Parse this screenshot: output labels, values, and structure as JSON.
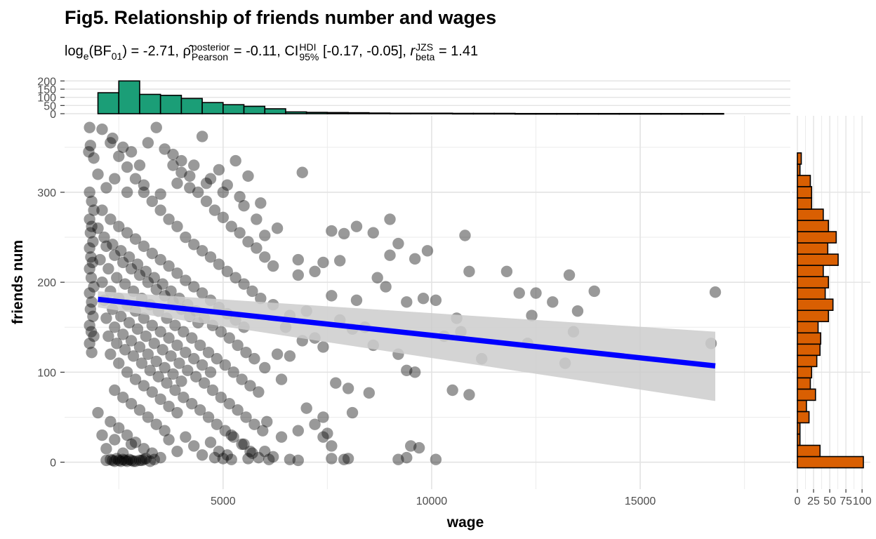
{
  "title": "Fig5. Relationship of friends number and wages",
  "subtitle": {
    "log_label": "log",
    "log_sub": "e",
    "bf": "BF",
    "bf_sub": "01",
    "bf_value": " = -2.71, ",
    "rho": "ρ̂",
    "rho_sup": "posterior",
    "rho_sub": "Pearson",
    "rho_value": " = -0.11, ",
    "ci": "CI",
    "ci_sup": "HDI",
    "ci_sub": "95%",
    "ci_value": " [-0.17, -0.05], ",
    "r": "r",
    "r_sup": "JZS",
    "r_sub": "beta",
    "r_value": " = 1.41"
  },
  "chart_data": {
    "type": "scatter",
    "xlabel": "wage",
    "ylabel": "friends num",
    "xlim": [
      1200,
      18600
    ],
    "ylim": [
      -30,
      385
    ],
    "x_ticks": [
      5000,
      10000,
      15000
    ],
    "y_ticks": [
      0,
      100,
      200,
      300
    ],
    "points": [
      [
        1800,
        372
      ],
      [
        1780,
        345
      ],
      [
        1820,
        352
      ],
      [
        1900,
        338
      ],
      [
        2350,
        360
      ],
      [
        2600,
        350
      ],
      [
        2800,
        345
      ],
      [
        3000,
        330
      ],
      [
        3200,
        355
      ],
      [
        3400,
        372
      ],
      [
        3800,
        330
      ],
      [
        4000,
        335
      ],
      [
        4500,
        362
      ],
      [
        5300,
        335
      ],
      [
        5600,
        318
      ],
      [
        6900,
        322
      ],
      [
        2000,
        320
      ],
      [
        2200,
        305
      ],
      [
        2400,
        315
      ],
      [
        2700,
        300
      ],
      [
        3100,
        308
      ],
      [
        3500,
        298
      ],
      [
        3900,
        310
      ],
      [
        4200,
        305
      ],
      [
        4600,
        310
      ],
      [
        5000,
        300
      ],
      [
        5400,
        295
      ],
      [
        5900,
        288
      ],
      [
        1800,
        300
      ],
      [
        1850,
        290
      ],
      [
        1900,
        280
      ],
      [
        1800,
        270
      ],
      [
        1850,
        262
      ],
      [
        1820,
        255
      ],
      [
        1880,
        245
      ],
      [
        1800,
        238
      ],
      [
        1830,
        228
      ],
      [
        1870,
        222
      ],
      [
        1800,
        215
      ],
      [
        1840,
        205
      ],
      [
        1900,
        195
      ],
      [
        1800,
        188
      ],
      [
        1850,
        178
      ],
      [
        1820,
        170
      ],
      [
        1880,
        162
      ],
      [
        1800,
        152
      ],
      [
        1840,
        145
      ],
      [
        1900,
        140
      ],
      [
        1800,
        132
      ],
      [
        1850,
        122
      ],
      [
        2100,
        280
      ],
      [
        2300,
        270
      ],
      [
        2500,
        262
      ],
      [
        2700,
        255
      ],
      [
        2900,
        248
      ],
      [
        3100,
        240
      ],
      [
        3300,
        232
      ],
      [
        3500,
        225
      ],
      [
        3700,
        218
      ],
      [
        3900,
        210
      ],
      [
        4100,
        202
      ],
      [
        4300,
        195
      ],
      [
        4500,
        188
      ],
      [
        4700,
        180
      ],
      [
        4900,
        172
      ],
      [
        5100,
        165
      ],
      [
        5300,
        158
      ],
      [
        5500,
        150
      ],
      [
        2200,
        240
      ],
      [
        2400,
        230
      ],
      [
        2600,
        222
      ],
      [
        2800,
        215
      ],
      [
        3000,
        208
      ],
      [
        3200,
        200
      ],
      [
        3400,
        192
      ],
      [
        3600,
        185
      ],
      [
        3800,
        178
      ],
      [
        4000,
        170
      ],
      [
        4200,
        162
      ],
      [
        4400,
        155
      ],
      [
        2100,
        200
      ],
      [
        2300,
        190
      ],
      [
        2500,
        182
      ],
      [
        2700,
        175
      ],
      [
        2900,
        168
      ],
      [
        3100,
        160
      ],
      [
        3300,
        152
      ],
      [
        3500,
        145
      ],
      [
        3700,
        138
      ],
      [
        3900,
        130
      ],
      [
        4100,
        122
      ],
      [
        4300,
        115
      ],
      [
        4500,
        108
      ],
      [
        4700,
        100
      ],
      [
        2200,
        160
      ],
      [
        2400,
        150
      ],
      [
        2600,
        142
      ],
      [
        2800,
        135
      ],
      [
        3000,
        128
      ],
      [
        3200,
        120
      ],
      [
        3400,
        112
      ],
      [
        3600,
        105
      ],
      [
        3800,
        98
      ],
      [
        4000,
        90
      ],
      [
        2300,
        120
      ],
      [
        2500,
        110
      ],
      [
        2700,
        100
      ],
      [
        2900,
        92
      ],
      [
        3100,
        85
      ],
      [
        3300,
        78
      ],
      [
        3500,
        70
      ],
      [
        3700,
        62
      ],
      [
        3900,
        55
      ],
      [
        2400,
        80
      ],
      [
        2600,
        72
      ],
      [
        2800,
        65
      ],
      [
        3000,
        58
      ],
      [
        3200,
        50
      ],
      [
        3400,
        42
      ],
      [
        3600,
        35
      ],
      [
        2300,
        45
      ],
      [
        2500,
        38
      ],
      [
        2700,
        30
      ],
      [
        2900,
        22
      ],
      [
        3100,
        15
      ],
      [
        3300,
        10
      ],
      [
        3500,
        5
      ],
      [
        2000,
        55
      ],
      [
        2100,
        30
      ],
      [
        2200,
        15
      ],
      [
        2400,
        25
      ],
      [
        2600,
        10
      ],
      [
        2800,
        20
      ],
      [
        3700,
        25
      ],
      [
        3900,
        12
      ],
      [
        4100,
        28
      ],
      [
        4300,
        18
      ],
      [
        4500,
        8
      ],
      [
        4700,
        22
      ],
      [
        5200,
        30
      ],
      [
        5500,
        20
      ],
      [
        6000,
        12
      ],
      [
        6400,
        28
      ],
      [
        6800,
        35
      ],
      [
        7200,
        42
      ],
      [
        7400,
        28
      ],
      [
        7600,
        18
      ],
      [
        9500,
        18
      ],
      [
        9700,
        16
      ],
      [
        4800,
        5
      ],
      [
        5000,
        4
      ],
      [
        5200,
        3
      ],
      [
        5600,
        4
      ],
      [
        6100,
        3
      ],
      [
        6800,
        2
      ],
      [
        7600,
        4
      ],
      [
        7900,
        3
      ],
      [
        8000,
        4
      ],
      [
        9200,
        3
      ],
      [
        9400,
        5
      ],
      [
        10100,
        3
      ],
      [
        5800,
        270
      ],
      [
        6300,
        260
      ],
      [
        6800,
        225
      ],
      [
        7400,
        222
      ],
      [
        7600,
        257
      ],
      [
        7900,
        254
      ],
      [
        8200,
        262
      ],
      [
        8600,
        255
      ],
      [
        9200,
        243
      ],
      [
        9000,
        270
      ],
      [
        9600,
        226
      ],
      [
        10800,
        252
      ],
      [
        6800,
        208
      ],
      [
        7200,
        212
      ],
      [
        7800,
        224
      ],
      [
        8700,
        205
      ],
      [
        9000,
        230
      ],
      [
        9900,
        235
      ],
      [
        10100,
        180
      ],
      [
        10900,
        212
      ],
      [
        11800,
        212
      ],
      [
        12100,
        188
      ],
      [
        12500,
        188
      ],
      [
        12900,
        178
      ],
      [
        13300,
        208
      ],
      [
        13900,
        190
      ],
      [
        16800,
        189
      ],
      [
        6200,
        175
      ],
      [
        6600,
        163
      ],
      [
        7000,
        168
      ],
      [
        7600,
        185
      ],
      [
        8200,
        180
      ],
      [
        8900,
        195
      ],
      [
        9400,
        178
      ],
      [
        9800,
        182
      ],
      [
        10600,
        160
      ],
      [
        10700,
        145
      ],
      [
        12400,
        163
      ],
      [
        13500,
        168
      ],
      [
        6500,
        150
      ],
      [
        6900,
        135
      ],
      [
        7400,
        128
      ],
      [
        7800,
        158
      ],
      [
        8100,
        148
      ],
      [
        8400,
        150
      ],
      [
        8600,
        130
      ],
      [
        9200,
        120
      ],
      [
        9400,
        102
      ],
      [
        10300,
        140
      ],
      [
        11200,
        115
      ],
      [
        12300,
        132
      ],
      [
        13200,
        110
      ],
      [
        13400,
        145
      ],
      [
        16700,
        132
      ],
      [
        6300,
        120
      ],
      [
        6600,
        118
      ],
      [
        7200,
        138
      ],
      [
        7700,
        88
      ],
      [
        8000,
        82
      ],
      [
        8500,
        77
      ],
      [
        9600,
        100
      ],
      [
        10500,
        80
      ],
      [
        10900,
        75
      ],
      [
        6000,
        105
      ],
      [
        6400,
        92
      ],
      [
        7000,
        60
      ],
      [
        7400,
        50
      ],
      [
        7500,
        32
      ],
      [
        8100,
        55
      ],
      [
        2100,
        370
      ],
      [
        2300,
        355
      ],
      [
        2500,
        340
      ],
      [
        2700,
        328
      ],
      [
        2900,
        315
      ],
      [
        3100,
        300
      ],
      [
        3300,
        290
      ],
      [
        3500,
        280
      ],
      [
        3700,
        270
      ],
      [
        3900,
        262
      ],
      [
        4100,
        250
      ],
      [
        4300,
        242
      ],
      [
        4500,
        235
      ],
      [
        4700,
        228
      ],
      [
        4900,
        220
      ],
      [
        5100,
        212
      ],
      [
        5300,
        205
      ],
      [
        5500,
        198
      ],
      [
        5700,
        190
      ],
      [
        5900,
        182
      ],
      [
        2000,
        260
      ],
      [
        2150,
        250
      ],
      [
        2350,
        242
      ],
      [
        2550,
        235
      ],
      [
        2750,
        228
      ],
      [
        2950,
        220
      ],
      [
        3150,
        212
      ],
      [
        3350,
        205
      ],
      [
        3550,
        198
      ],
      [
        3750,
        190
      ],
      [
        3950,
        182
      ],
      [
        4150,
        175
      ],
      [
        4350,
        168
      ],
      [
        4550,
        160
      ],
      [
        4750,
        152
      ],
      [
        4950,
        145
      ],
      [
        5150,
        138
      ],
      [
        5350,
        130
      ],
      [
        5550,
        122
      ],
      [
        5750,
        115
      ],
      [
        2050,
        225
      ],
      [
        2250,
        215
      ],
      [
        2450,
        205
      ],
      [
        2650,
        198
      ],
      [
        2850,
        190
      ],
      [
        3050,
        182
      ],
      [
        3250,
        175
      ],
      [
        3450,
        168
      ],
      [
        3650,
        160
      ],
      [
        3850,
        152
      ],
      [
        4050,
        145
      ],
      [
        4250,
        138
      ],
      [
        4450,
        130
      ],
      [
        4650,
        122
      ],
      [
        4850,
        115
      ],
      [
        5050,
        108
      ],
      [
        5250,
        100
      ],
      [
        5450,
        92
      ],
      [
        5650,
        85
      ],
      [
        5850,
        78
      ],
      [
        2150,
        180
      ],
      [
        2350,
        170
      ],
      [
        2550,
        162
      ],
      [
        2750,
        155
      ],
      [
        2950,
        148
      ],
      [
        3150,
        140
      ],
      [
        3350,
        132
      ],
      [
        3550,
        125
      ],
      [
        3750,
        118
      ],
      [
        3950,
        110
      ],
      [
        4150,
        102
      ],
      [
        4350,
        95
      ],
      [
        4550,
        88
      ],
      [
        4750,
        80
      ],
      [
        4950,
        72
      ],
      [
        5150,
        65
      ],
      [
        5350,
        58
      ],
      [
        5550,
        50
      ],
      [
        5750,
        42
      ],
      [
        5950,
        35
      ],
      [
        2250,
        140
      ],
      [
        2450,
        132
      ],
      [
        2650,
        125
      ],
      [
        2850,
        118
      ],
      [
        3050,
        110
      ],
      [
        3250,
        102
      ],
      [
        3450,
        95
      ],
      [
        3650,
        88
      ],
      [
        3850,
        80
      ],
      [
        4050,
        72
      ],
      [
        4250,
        65
      ],
      [
        4450,
        58
      ],
      [
        4650,
        50
      ],
      [
        4850,
        42
      ],
      [
        5050,
        35
      ],
      [
        5250,
        28
      ],
      [
        5450,
        20
      ],
      [
        5650,
        12
      ],
      [
        5850,
        5
      ],
      [
        6050,
        45
      ],
      [
        3600,
        348
      ],
      [
        3800,
        342
      ],
      [
        4000,
        322
      ],
      [
        4200,
        318
      ],
      [
        4400,
        300
      ],
      [
        4600,
        290
      ],
      [
        4800,
        280
      ],
      [
        5000,
        272
      ],
      [
        5200,
        262
      ],
      [
        5400,
        255
      ],
      [
        5600,
        245
      ],
      [
        5800,
        238
      ],
      [
        6000,
        228
      ],
      [
        6200,
        218
      ],
      [
        4300,
        330
      ],
      [
        4700,
        315
      ],
      [
        4900,
        325
      ],
      [
        5100,
        308
      ],
      [
        5500,
        285
      ],
      [
        6000,
        252
      ],
      [
        3000,
        2
      ],
      [
        2900,
        1
      ],
      [
        3100,
        3
      ],
      [
        2200,
        2
      ],
      [
        2300,
        3
      ],
      [
        2400,
        1
      ],
      [
        2500,
        2
      ],
      [
        2600,
        3
      ],
      [
        2700,
        1
      ],
      [
        2800,
        2
      ],
      [
        2450,
        4
      ],
      [
        2550,
        1
      ],
      [
        2650,
        2
      ],
      [
        2750,
        3
      ],
      [
        2850,
        1
      ],
      [
        3050,
        2
      ],
      [
        2350,
        2
      ],
      [
        3150,
        4
      ],
      [
        3250,
        1
      ],
      [
        3350,
        3
      ],
      [
        4900,
        12
      ],
      [
        5100,
        8
      ],
      [
        5700,
        10
      ],
      [
        6200,
        6
      ],
      [
        6600,
        3
      ]
    ],
    "regression": {
      "x_start": 2000,
      "y_start": 181,
      "x_end": 16800,
      "y_end": 107
    },
    "ci_band": {
      "lower_start": 172,
      "upper_start": 190,
      "lower_end": 68,
      "upper_end": 145
    },
    "top_histogram": {
      "y_ticks": [
        0,
        50,
        100,
        150,
        200
      ],
      "counts": [
        128,
        200,
        118,
        112,
        93,
        68,
        55,
        45,
        30,
        11,
        8,
        7,
        6,
        4,
        3,
        3,
        3,
        2,
        2,
        2,
        1,
        1,
        1,
        1,
        1,
        1,
        1,
        1,
        1,
        1
      ],
      "x_start": 2000,
      "bin_width": 500,
      "fill": "#1b9e77"
    },
    "right_histogram": {
      "x_ticks": [
        0,
        25,
        50,
        75,
        100
      ],
      "x_tick_labels": [
        "0",
        "25",
        "50",
        "75",
        "100"
      ],
      "counts": [
        102,
        35,
        4,
        4,
        18,
        14,
        28,
        20,
        22,
        30,
        35,
        36,
        32,
        48,
        55,
        43,
        48,
        40,
        63,
        47,
        60,
        48,
        40,
        22,
        22,
        20,
        4,
        6
      ],
      "y_start": 0,
      "bin_width": 12.5,
      "fill": "#d95f02"
    },
    "colors": {
      "points": "#000000",
      "line": "#0000ff",
      "band": "#cccccc"
    }
  }
}
